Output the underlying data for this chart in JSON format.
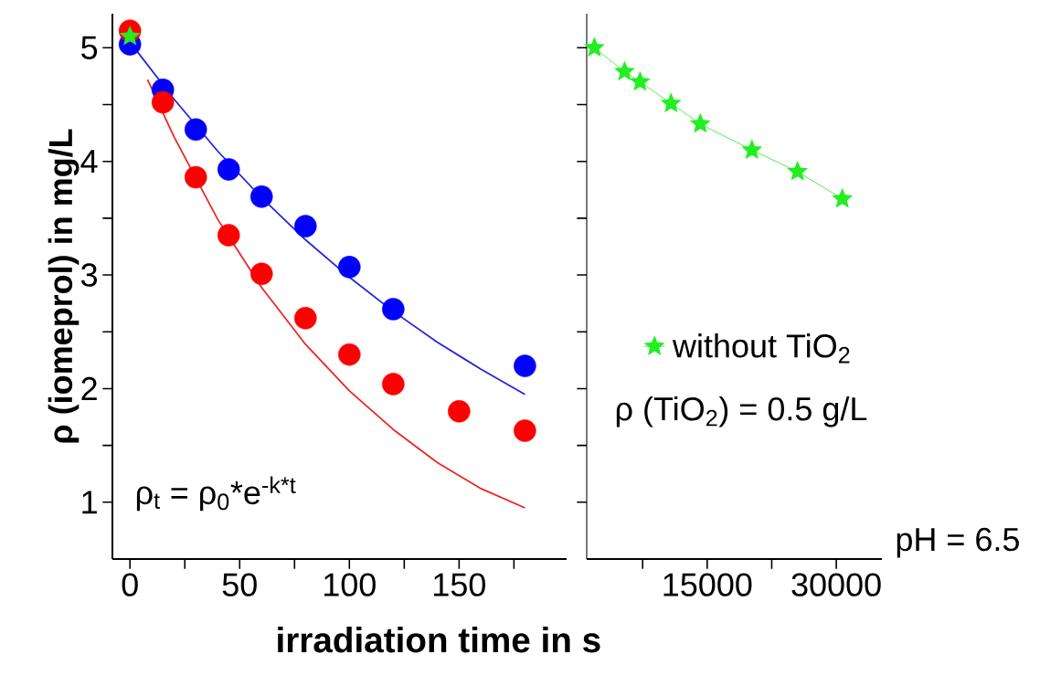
{
  "chart_data": [
    {
      "type": "scatter",
      "ylabel": "ρ (iomeprol) in mg/L",
      "xlabel": "irradiation time in s",
      "xlim": [
        -8,
        199
      ],
      "ylim": [
        0.5,
        5.3
      ],
      "xticks": [
        0,
        {
          "value": 25,
          "label": null
        },
        50,
        {
          "value": 75,
          "label": null
        },
        100,
        {
          "value": 125,
          "label": null
        },
        150,
        {
          "value": 175,
          "label": null
        }
      ],
      "yticks": [
        1,
        {
          "value": 1.5,
          "label": null
        },
        2,
        {
          "value": 2.5,
          "label": null
        },
        3,
        {
          "value": 3.5,
          "label": null
        },
        4,
        {
          "value": 4.5,
          "label": null
        },
        5
      ],
      "annotations": [
        "ρ$_{t}$ = ρ$_{0}$*e$^{-k*t}$"
      ],
      "legend": false,
      "series": [
        {
          "type": "line",
          "color": "#2222dd",
          "marker": "none",
          "x": [
            0,
            20,
            40,
            60,
            80,
            100,
            120,
            140,
            160,
            180
          ],
          "values": [
            5.05,
            4.55,
            4.09,
            3.68,
            3.31,
            2.98,
            2.68,
            2.41,
            2.17,
            1.95
          ]
        },
        {
          "type": "line",
          "color": "#ee2222",
          "marker": "none",
          "x": [
            8,
            20,
            40,
            60,
            80,
            100,
            120,
            140,
            160,
            180
          ],
          "values": [
            4.72,
            4.22,
            3.49,
            2.89,
            2.39,
            1.98,
            1.64,
            1.35,
            1.12,
            0.95
          ]
        },
        {
          "color": "#0000ff",
          "marker": "circle",
          "x": [
            0,
            15,
            30,
            45,
            60,
            80,
            100,
            120,
            180
          ],
          "values": [
            5.03,
            4.63,
            4.28,
            3.93,
            3.69,
            3.43,
            3.07,
            2.7,
            2.2
          ]
        },
        {
          "color": "#ff0000",
          "marker": "circle",
          "x": [
            0,
            15,
            30,
            45,
            60,
            80,
            100,
            120,
            150,
            180
          ],
          "values": [
            5.15,
            4.52,
            3.86,
            3.35,
            3.01,
            2.62,
            2.3,
            2.04,
            1.8,
            1.63
          ]
        },
        {
          "color": "#22ee22",
          "marker": "star",
          "x": [
            0
          ],
          "values": [
            5.1
          ]
        }
      ]
    },
    {
      "type": "line",
      "xlim": [
        1000,
        35300
      ],
      "ylim": [
        0.5,
        5.3
      ],
      "yticks": [
        1,
        {
          "value": 1.5,
          "label": null
        },
        2,
        {
          "value": 2.5,
          "label": null
        },
        3,
        {
          "value": 3.5,
          "label": null
        },
        4,
        {
          "value": 4.5,
          "label": null
        },
        5
      ],
      "xticks": [
        {
          "value": 7500,
          "label": null
        },
        15000,
        {
          "value": 22500,
          "label": null
        },
        30000
      ],
      "tick_labels": "x",
      "annotations": [
        "ρ (TiO$_{2}$) = 0.5 g/L",
        "pH = 6.5"
      ],
      "legend": "center",
      "series": [
        {
          "name": "without TiO$_{2}$",
          "color": "#22ee22",
          "marker": "star",
          "x": [
            1900,
            5400,
            7200,
            10800,
            14200,
            20200,
            25500,
            30700
          ],
          "values": [
            5.0,
            4.79,
            4.7,
            4.51,
            4.33,
            4.1,
            3.91,
            3.67
          ]
        }
      ]
    }
  ]
}
